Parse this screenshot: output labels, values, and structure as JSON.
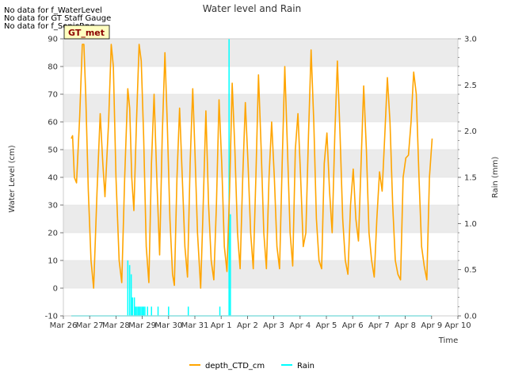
{
  "notes": [
    "No data for f_WaterLevel",
    "No data for GT Staff Gauge",
    "No data for f_SonicRng"
  ],
  "chart_data": {
    "type": "line",
    "title": "Water level and Rain",
    "xlabel": "Time",
    "ylabel": "Water Level (cm)",
    "y2label": "Rain (mm)",
    "badge": "GT_met",
    "x_tick_labels": [
      "Mar 26",
      "Mar 27",
      "Mar 28",
      "Mar 29",
      "Mar 30",
      "Mar 31",
      "Apr 1",
      "Apr 2",
      "Apr 3",
      "Apr 4",
      "Apr 5",
      "Apr 6",
      "Apr 7",
      "Apr 8",
      "Apr 9",
      "Apr 10"
    ],
    "xlim": [
      0,
      15
    ],
    "ylim": [
      -10,
      90
    ],
    "y_ticks": [
      -10,
      0,
      10,
      20,
      30,
      40,
      50,
      60,
      70,
      80,
      90
    ],
    "y2lim": [
      0,
      3.0
    ],
    "y2_ticks": [
      0.0,
      0.5,
      1.0,
      1.5,
      2.0,
      2.5,
      3.0
    ],
    "y2_tick_labels": [
      "0.0",
      "0.5",
      "1.0",
      "1.5",
      "2.0",
      "2.5",
      "3.0"
    ],
    "legend": "bottom-center",
    "colors": {
      "depth": "#FFA500",
      "rain": "#00FFFF",
      "band": "#EBEBEB",
      "badge_bg": "#FFFFC0",
      "badge_text": "#8B0000"
    },
    "series": [
      {
        "name": "depth_CTD_cm",
        "axis": "left",
        "note": "x in days since Mar 26 00:00",
        "points": [
          [
            0.3,
            54
          ],
          [
            0.35,
            55
          ],
          [
            0.42,
            40
          ],
          [
            0.5,
            38
          ],
          [
            0.62,
            62
          ],
          [
            0.72,
            88
          ],
          [
            0.78,
            88
          ],
          [
            0.85,
            70
          ],
          [
            0.95,
            35
          ],
          [
            1.05,
            10
          ],
          [
            1.15,
            0
          ],
          [
            1.28,
            35
          ],
          [
            1.4,
            63
          ],
          [
            1.5,
            45
          ],
          [
            1.58,
            33
          ],
          [
            1.72,
            60
          ],
          [
            1.82,
            88
          ],
          [
            1.9,
            80
          ],
          [
            2.0,
            40
          ],
          [
            2.12,
            10
          ],
          [
            2.22,
            2
          ],
          [
            2.33,
            40
          ],
          [
            2.45,
            72
          ],
          [
            2.52,
            65
          ],
          [
            2.6,
            40
          ],
          [
            2.68,
            28
          ],
          [
            2.78,
            60
          ],
          [
            2.88,
            88
          ],
          [
            2.96,
            82
          ],
          [
            3.05,
            55
          ],
          [
            3.15,
            15
          ],
          [
            3.25,
            2
          ],
          [
            3.35,
            45
          ],
          [
            3.45,
            70
          ],
          [
            3.55,
            40
          ],
          [
            3.66,
            12
          ],
          [
            3.76,
            55
          ],
          [
            3.86,
            85
          ],
          [
            3.95,
            60
          ],
          [
            4.05,
            25
          ],
          [
            4.15,
            5
          ],
          [
            4.22,
            1
          ],
          [
            4.32,
            40
          ],
          [
            4.42,
            65
          ],
          [
            4.52,
            40
          ],
          [
            4.62,
            15
          ],
          [
            4.72,
            4
          ],
          [
            4.82,
            45
          ],
          [
            4.92,
            72
          ],
          [
            5.0,
            50
          ],
          [
            5.1,
            20
          ],
          [
            5.22,
            0
          ],
          [
            5.3,
            25
          ],
          [
            5.42,
            64
          ],
          [
            5.52,
            30
          ],
          [
            5.62,
            10
          ],
          [
            5.72,
            3
          ],
          [
            5.82,
            30
          ],
          [
            5.92,
            68
          ],
          [
            6.02,
            45
          ],
          [
            6.12,
            15
          ],
          [
            6.22,
            6
          ],
          [
            6.32,
            35
          ],
          [
            6.42,
            74
          ],
          [
            6.52,
            50
          ],
          [
            6.62,
            20
          ],
          [
            6.72,
            7
          ],
          [
            6.82,
            40
          ],
          [
            6.92,
            67
          ],
          [
            7.02,
            45
          ],
          [
            7.12,
            20
          ],
          [
            7.22,
            7
          ],
          [
            7.32,
            40
          ],
          [
            7.42,
            77
          ],
          [
            7.52,
            50
          ],
          [
            7.62,
            20
          ],
          [
            7.72,
            7
          ],
          [
            7.82,
            40
          ],
          [
            7.92,
            60
          ],
          [
            8.02,
            40
          ],
          [
            8.12,
            15
          ],
          [
            8.22,
            7
          ],
          [
            8.32,
            45
          ],
          [
            8.42,
            80
          ],
          [
            8.52,
            50
          ],
          [
            8.62,
            20
          ],
          [
            8.72,
            8
          ],
          [
            8.82,
            50
          ],
          [
            8.92,
            63
          ],
          [
            9.02,
            40
          ],
          [
            9.12,
            15
          ],
          [
            9.22,
            20
          ],
          [
            9.32,
            55
          ],
          [
            9.42,
            86
          ],
          [
            9.52,
            60
          ],
          [
            9.62,
            25
          ],
          [
            9.72,
            10
          ],
          [
            9.82,
            7
          ],
          [
            9.92,
            45
          ],
          [
            10.02,
            56
          ],
          [
            10.12,
            35
          ],
          [
            10.22,
            20
          ],
          [
            10.32,
            55
          ],
          [
            10.42,
            82
          ],
          [
            10.52,
            55
          ],
          [
            10.62,
            25
          ],
          [
            10.72,
            10
          ],
          [
            10.82,
            5
          ],
          [
            10.92,
            30
          ],
          [
            11.02,
            43
          ],
          [
            11.12,
            25
          ],
          [
            11.22,
            17
          ],
          [
            11.32,
            45
          ],
          [
            11.42,
            73
          ],
          [
            11.52,
            50
          ],
          [
            11.62,
            20
          ],
          [
            11.72,
            10
          ],
          [
            11.82,
            4
          ],
          [
            11.92,
            25
          ],
          [
            12.02,
            42
          ],
          [
            12.12,
            35
          ],
          [
            12.22,
            55
          ],
          [
            12.32,
            76
          ],
          [
            12.42,
            60
          ],
          [
            12.52,
            30
          ],
          [
            12.62,
            10
          ],
          [
            12.72,
            5
          ],
          [
            12.82,
            3
          ],
          [
            12.92,
            40
          ],
          [
            13.02,
            47
          ],
          [
            13.12,
            48
          ],
          [
            13.22,
            60
          ],
          [
            13.32,
            78
          ],
          [
            13.42,
            70
          ],
          [
            13.52,
            40
          ],
          [
            13.62,
            15
          ],
          [
            13.72,
            8
          ],
          [
            13.82,
            3
          ],
          [
            13.92,
            40
          ],
          [
            14.02,
            54
          ]
        ]
      },
      {
        "name": "Rain",
        "axis": "right",
        "baseline_x": [
          0.3,
          14.0
        ],
        "spikes": [
          [
            2.45,
            0.6
          ],
          [
            2.52,
            0.55
          ],
          [
            2.58,
            0.45
          ],
          [
            2.63,
            0.2
          ],
          [
            2.7,
            0.2
          ],
          [
            2.75,
            0.1
          ],
          [
            2.8,
            0.1
          ],
          [
            2.85,
            0.1
          ],
          [
            2.9,
            0.1
          ],
          [
            2.95,
            0.1
          ],
          [
            3.0,
            0.1
          ],
          [
            3.05,
            0.1
          ],
          [
            3.1,
            0.1
          ],
          [
            3.2,
            0.1
          ],
          [
            3.35,
            0.1
          ],
          [
            3.6,
            0.1
          ],
          [
            4.0,
            0.1
          ],
          [
            4.75,
            0.1
          ],
          [
            5.95,
            0.1
          ],
          [
            6.3,
            3.0
          ],
          [
            6.35,
            1.1
          ]
        ]
      }
    ]
  }
}
